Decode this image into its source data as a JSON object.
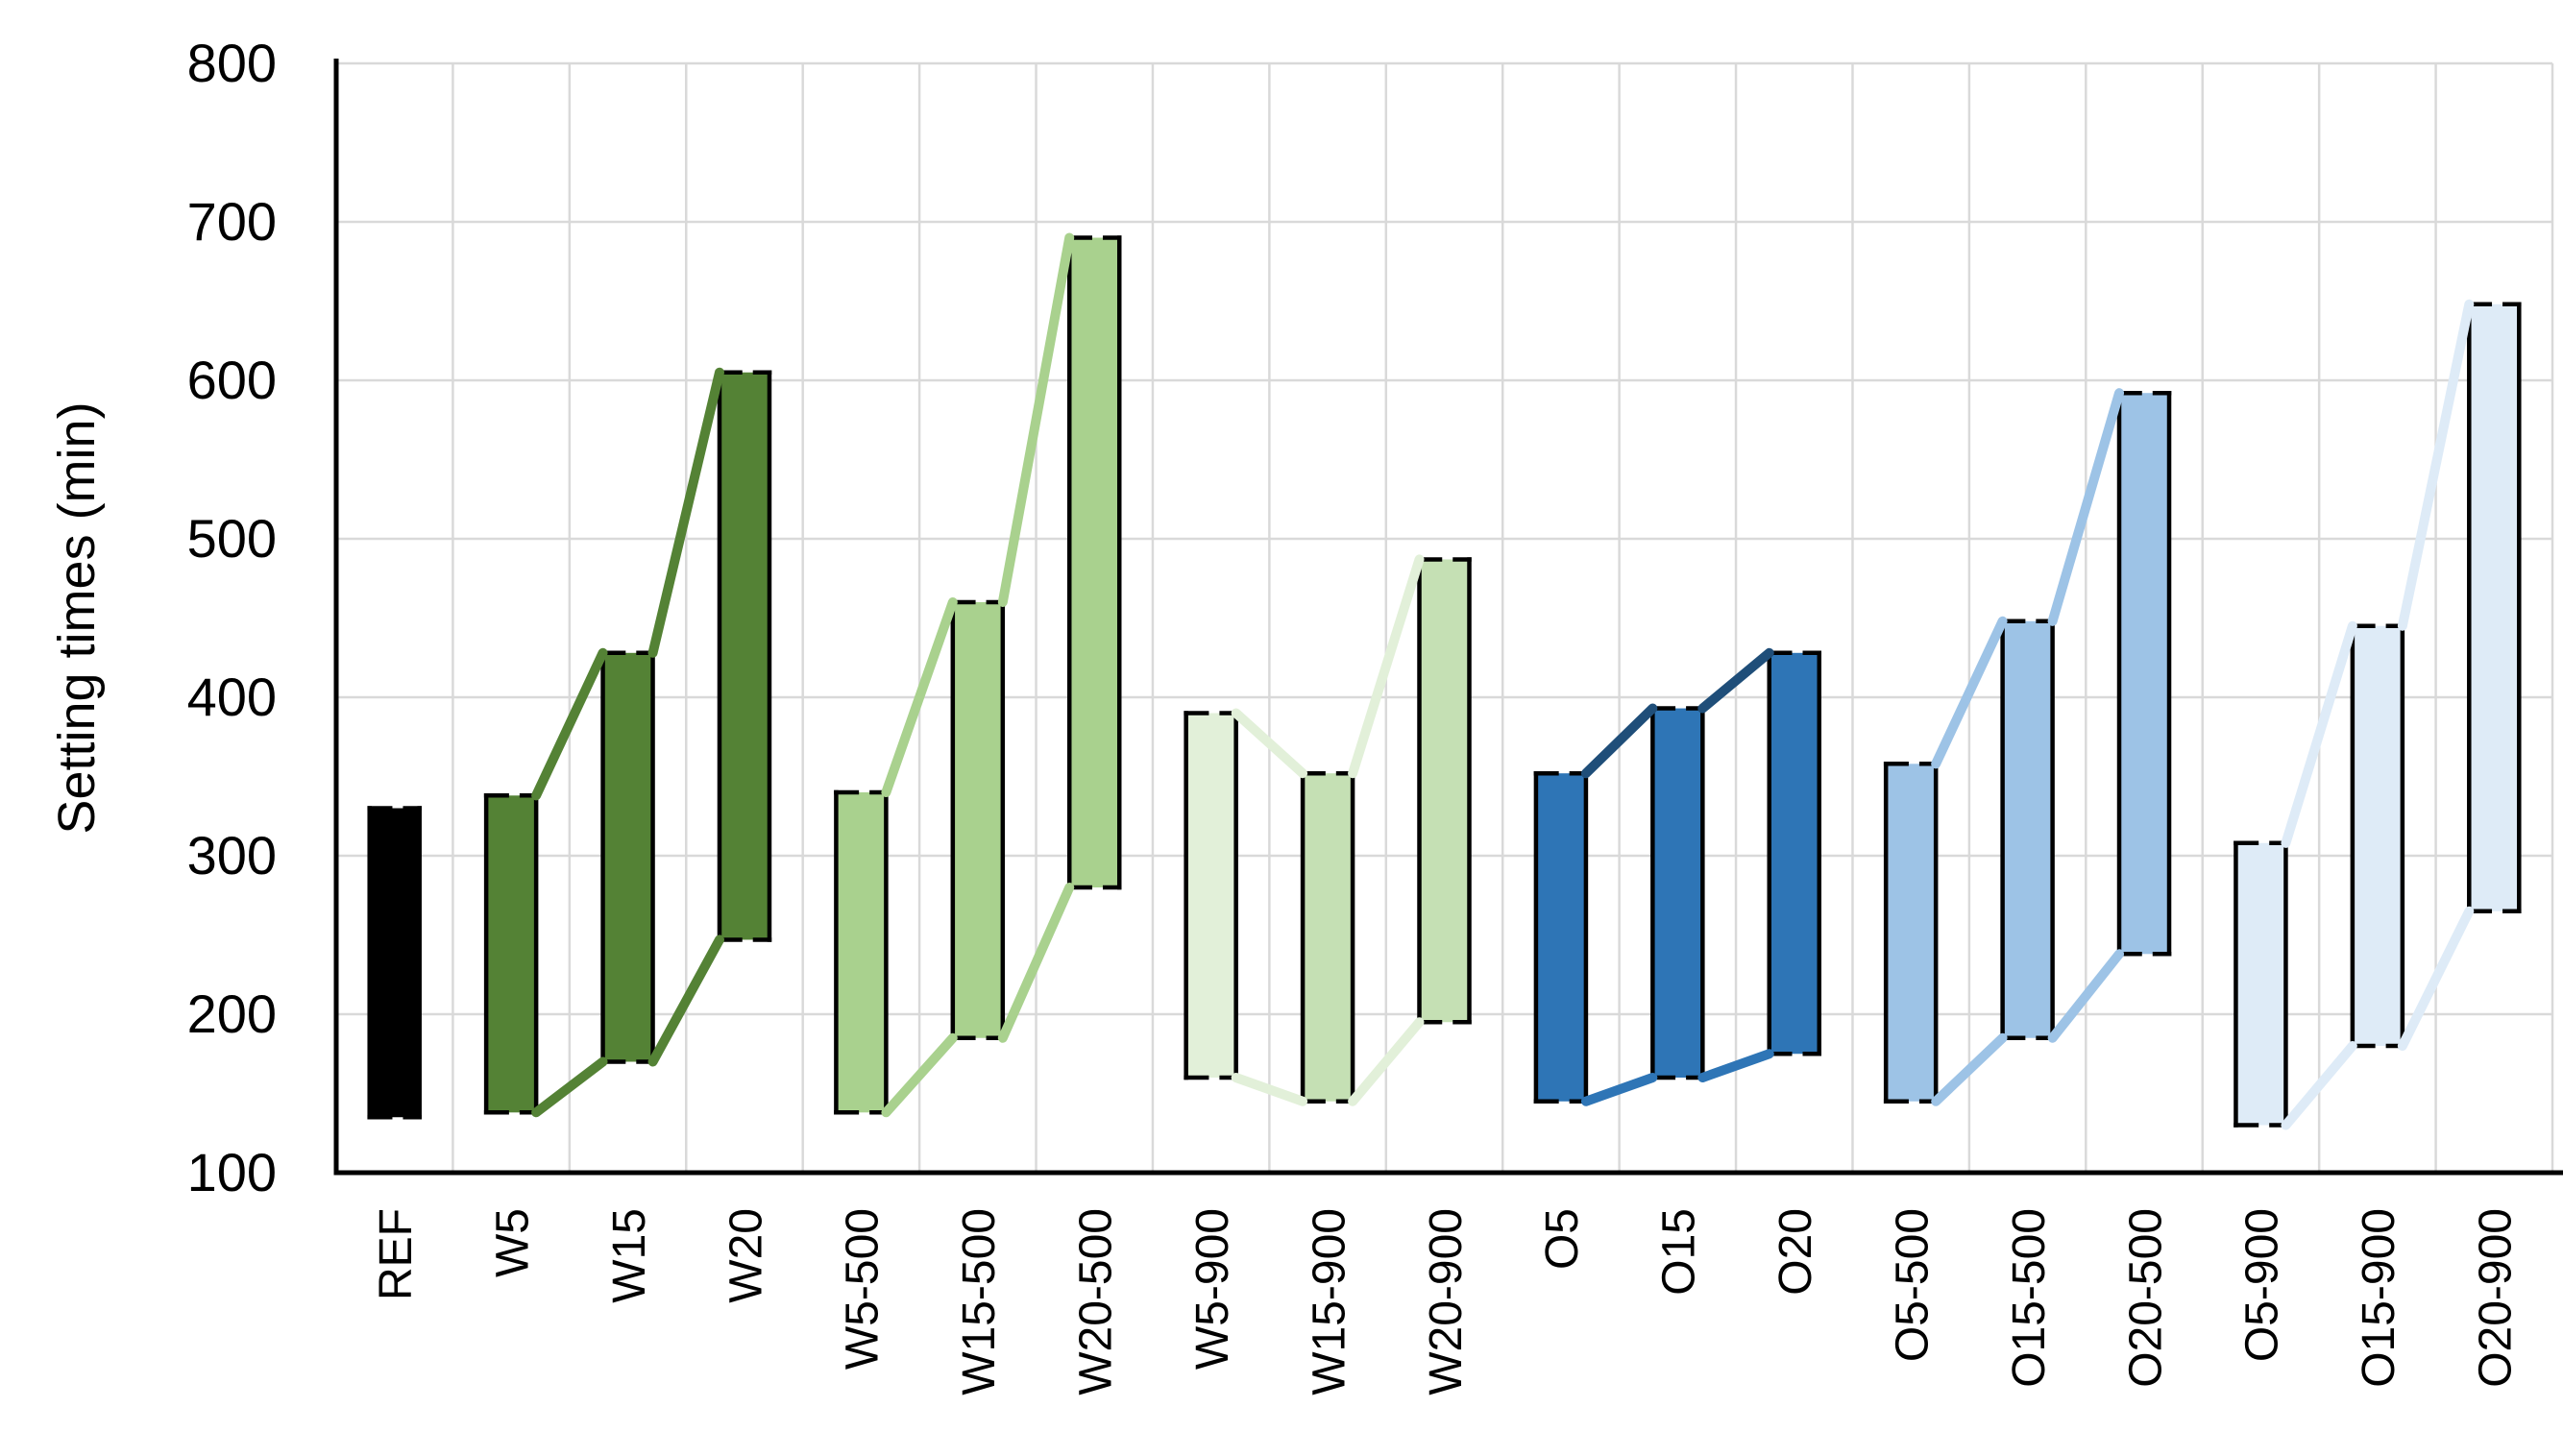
{
  "chart_data": {
    "type": "bar",
    "subtype": "floating-range-bars-with-group-connector-lines",
    "title": "",
    "ylabel": "Setting times (min)",
    "xlabel": "",
    "ylim": [
      100,
      800
    ],
    "yticks": [
      100,
      200,
      300,
      400,
      500,
      600,
      700,
      800
    ],
    "grid": true,
    "grid_color": "#d9d9d9",
    "axis_color": "#000000",
    "background_color": "#ffffff",
    "legend": "none",
    "categories": [
      "REF",
      "W5",
      "W15",
      "W20",
      "W5-500",
      "W15-500",
      "W20-500",
      "W5-900",
      "W15-900",
      "W20-900",
      "O5",
      "O15",
      "O20",
      "O5-500",
      "O15-500",
      "O20-500",
      "O5-900",
      "O15-900",
      "O20-900"
    ],
    "series": [
      {
        "name": "range_low",
        "values": [
          135,
          138,
          170,
          247,
          138,
          185,
          280,
          160,
          145,
          195,
          145,
          160,
          175,
          145,
          185,
          238,
          130,
          180,
          265
        ]
      },
      {
        "name": "range_high",
        "values": [
          330,
          338,
          428,
          605,
          340,
          460,
          690,
          390,
          352,
          487,
          352,
          393,
          428,
          358,
          448,
          592,
          308,
          445,
          648
        ]
      }
    ],
    "bar_fills": [
      "#000000",
      "#548235",
      "#548235",
      "#548235",
      "#a9d18e",
      "#a9d18e",
      "#a9d18e",
      "#e2f0d9",
      "#c5e0b4",
      "#c5e0b4",
      "#2e75b6",
      "#2e75b6",
      "#2e75b6",
      "#9dc3e6",
      "#9dc3e6",
      "#9dc3e6",
      "#deebf7",
      "#deebf7",
      "#deebf7"
    ],
    "bar_outline_color": "#000000",
    "groups": [
      {
        "name": "REF",
        "indices": [
          0
        ],
        "connect": false,
        "top_line_color": null,
        "bottom_line_color": null
      },
      {
        "name": "W",
        "indices": [
          1,
          2,
          3
        ],
        "connect": true,
        "top_line_color": "#548235",
        "bottom_line_color": "#548235"
      },
      {
        "name": "W-500",
        "indices": [
          4,
          5,
          6
        ],
        "connect": true,
        "top_line_color": "#a9d18e",
        "bottom_line_color": "#a9d18e"
      },
      {
        "name": "W-900",
        "indices": [
          7,
          8,
          9
        ],
        "connect": true,
        "top_line_color": "#e2f0d9",
        "bottom_line_color": "#e2f0d9"
      },
      {
        "name": "O",
        "indices": [
          10,
          11,
          12
        ],
        "connect": true,
        "top_line_color": "#1f4e79",
        "bottom_line_color": "#2e75b6"
      },
      {
        "name": "O-500",
        "indices": [
          13,
          14,
          15
        ],
        "connect": true,
        "top_line_color": "#9dc3e6",
        "bottom_line_color": "#9dc3e6"
      },
      {
        "name": "O-900",
        "indices": [
          16,
          17,
          18
        ],
        "connect": true,
        "top_line_color": "#deebf7",
        "bottom_line_color": "#deebf7"
      }
    ]
  }
}
